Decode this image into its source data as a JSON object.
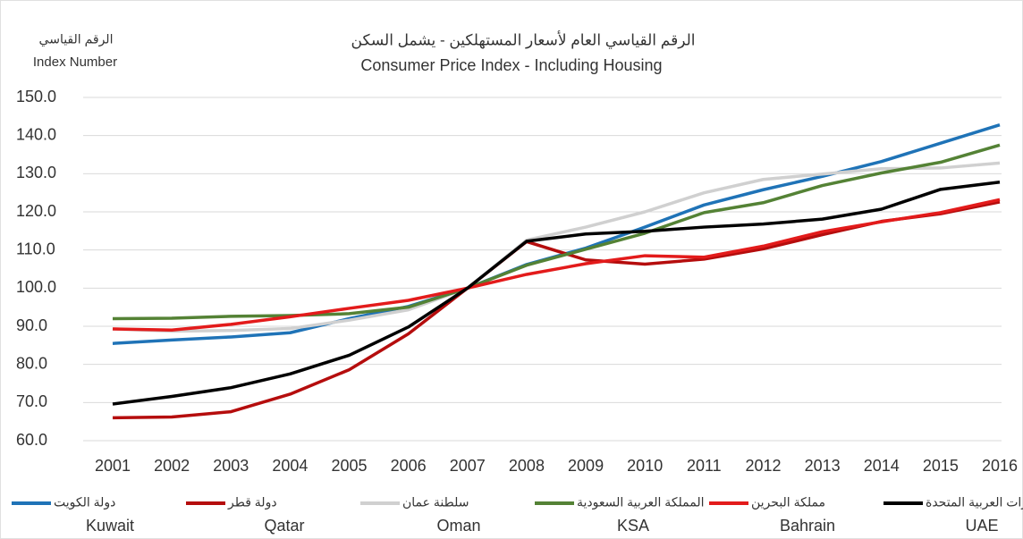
{
  "chart_data": {
    "type": "line",
    "title_ar": "الرقم القياسي العام لأسعار المستهلكين - يشمل السكن",
    "title": "Consumer Price Index - Including Housing",
    "y_label_ar": "الرقم القياسي",
    "y_label": "Index Number",
    "categories": [
      "2001",
      "2002",
      "2003",
      "2004",
      "2005",
      "2006",
      "2007",
      "2008",
      "2009",
      "2010",
      "2011",
      "2012",
      "2013",
      "2014",
      "2015",
      "2016"
    ],
    "ylim": [
      60,
      150
    ],
    "yticks": [
      {
        "value": 60,
        "label": "60.0"
      },
      {
        "value": 70,
        "label": "70.0"
      },
      {
        "value": 80,
        "label": "80.0"
      },
      {
        "value": 90,
        "label": "90.0"
      },
      {
        "value": 100,
        "label": "100.0"
      },
      {
        "value": 110,
        "label": "110.0"
      },
      {
        "value": 120,
        "label": "120.0"
      },
      {
        "value": 130,
        "label": "130.0"
      },
      {
        "value": 140,
        "label": "140.0"
      },
      {
        "value": 150,
        "label": "150.0"
      }
    ],
    "grid": true,
    "series": [
      {
        "name": "Kuwait",
        "name_ar": "دولة الكويت",
        "color": "#1f73b7",
        "values": [
          85.5,
          86.4,
          87.2,
          88.3,
          92,
          95.2,
          100,
          106.2,
          110.5,
          116,
          121.8,
          125.8,
          129.3,
          133.2,
          138,
          142.8
        ]
      },
      {
        "name": "Qatar",
        "name_ar": "دولة قطر",
        "color": "#b50d0d",
        "values": [
          66,
          66.2,
          67.6,
          72.2,
          78.6,
          88,
          100,
          112.2,
          107.4,
          106.3,
          107.6,
          110.3,
          114,
          117.5,
          119.5,
          122.6
        ]
      },
      {
        "name": "Oman",
        "name_ar": "سلطنة عمان",
        "color": "#d0d0d0",
        "values": [
          89.3,
          88.7,
          88.9,
          89.4,
          91.6,
          94.3,
          100,
          112.6,
          116,
          120,
          125,
          128.5,
          129.9,
          131.3,
          131.5,
          132.8
        ]
      },
      {
        "name": "KSA",
        "name_ar": "المملكة العربية السعودية",
        "color": "#548235",
        "values": [
          92,
          92.1,
          92.6,
          92.8,
          93.3,
          95,
          100,
          106,
          110.2,
          114.4,
          119.8,
          122.4,
          126.9,
          130.2,
          133,
          137.5
        ]
      },
      {
        "name": "Bahrain",
        "name_ar": "مملكة البحرين",
        "color": "#e31b1b",
        "values": [
          89.3,
          89,
          90.5,
          92.5,
          94.7,
          96.8,
          100,
          103.6,
          106.4,
          108.5,
          108.1,
          111,
          114.8,
          117.4,
          119.8,
          123.2
        ]
      },
      {
        "name": "UAE",
        "name_ar": "الإمارات العربية المتحدة",
        "color": "#000000",
        "values": [
          69.6,
          71.6,
          73.9,
          77.5,
          82.4,
          89.8,
          100,
          112.3,
          114.2,
          114.9,
          116,
          116.8,
          118.1,
          120.7,
          125.9,
          127.8
        ]
      }
    ]
  }
}
